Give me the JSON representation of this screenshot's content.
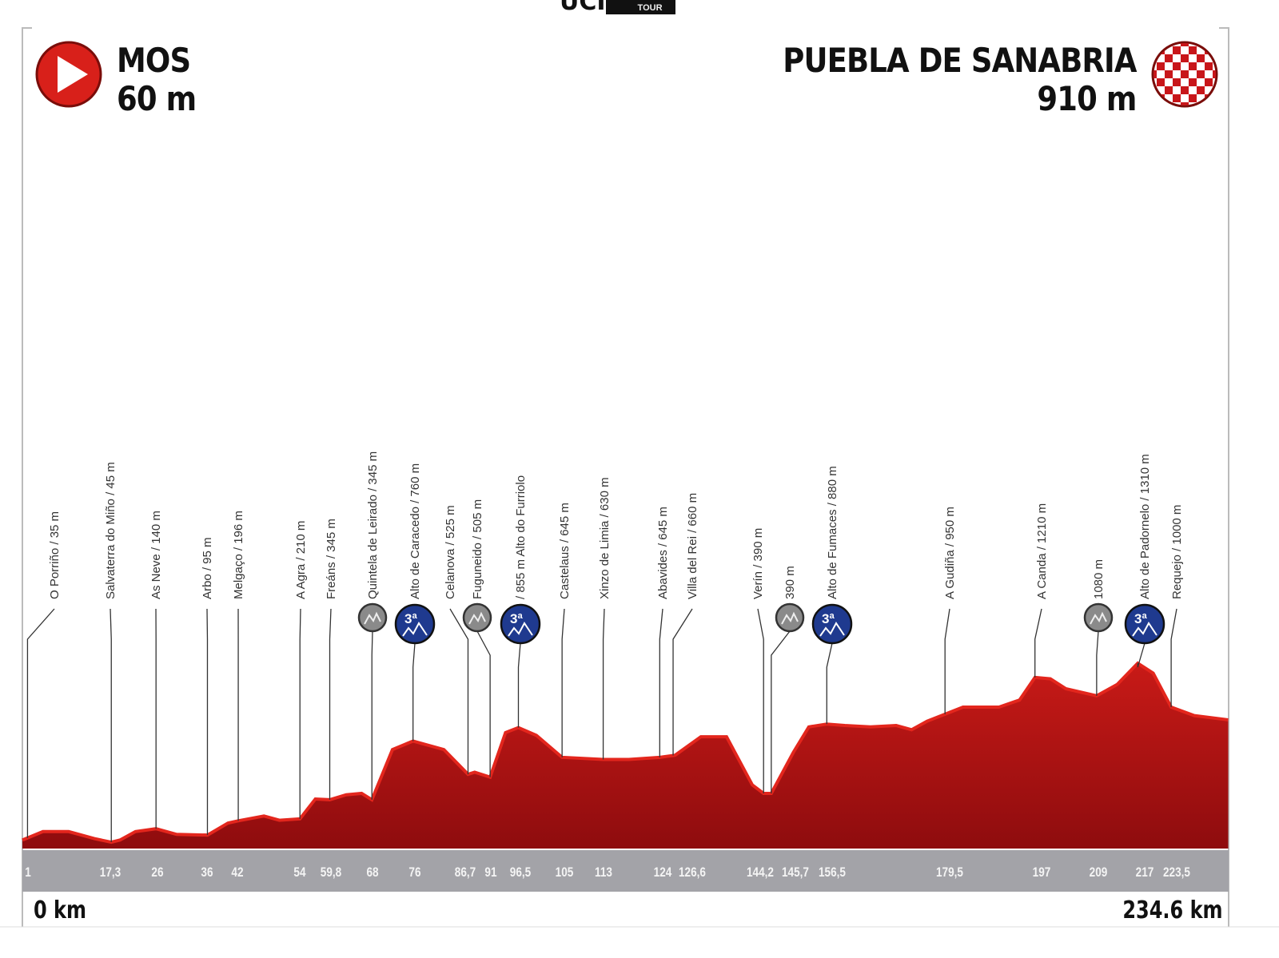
{
  "logo": {
    "text": "UCI",
    "tour": "TOUR"
  },
  "start": {
    "name": "MOS",
    "elevation": "60 m",
    "icon": "play-icon"
  },
  "finish": {
    "name": "PUEBLA DE SANABRIA",
    "elevation": "910 m",
    "icon": "checkered-flag-icon"
  },
  "distance": {
    "start": "0 km",
    "end": "234.6 km"
  },
  "colors": {
    "profile_dark": "#9e0f10",
    "profile_light": "#e3261d",
    "band": "#a3a3a8",
    "badge_blue": "#1f3a8f",
    "badge_grey": "#8a8a8a"
  },
  "chart_data": {
    "type": "area",
    "x_unit": "km",
    "y_unit": "m",
    "xlim": [
      0,
      234.6
    ],
    "profile": [
      [
        0,
        60
      ],
      [
        4,
        120
      ],
      [
        9,
        120
      ],
      [
        14,
        70
      ],
      [
        17.3,
        45
      ],
      [
        19,
        60
      ],
      [
        22,
        120
      ],
      [
        26,
        140
      ],
      [
        30,
        100
      ],
      [
        36,
        95
      ],
      [
        40,
        180
      ],
      [
        42,
        196
      ],
      [
        47,
        230
      ],
      [
        50,
        200
      ],
      [
        54,
        210
      ],
      [
        57,
        350
      ],
      [
        59.8,
        345
      ],
      [
        63,
        380
      ],
      [
        66,
        390
      ],
      [
        68,
        345
      ],
      [
        72,
        700
      ],
      [
        76,
        760
      ],
      [
        78,
        740
      ],
      [
        82,
        700
      ],
      [
        86.7,
        525
      ],
      [
        88,
        540
      ],
      [
        91,
        505
      ],
      [
        94,
        820
      ],
      [
        96.5,
        855
      ],
      [
        100,
        800
      ],
      [
        105,
        645
      ],
      [
        113,
        630
      ],
      [
        118,
        630
      ],
      [
        124,
        645
      ],
      [
        127,
        660
      ],
      [
        132,
        790
      ],
      [
        137,
        790
      ],
      [
        142,
        450
      ],
      [
        144.2,
        390
      ],
      [
        145.7,
        390
      ],
      [
        150,
        680
      ],
      [
        153,
        860
      ],
      [
        156.5,
        880
      ],
      [
        160,
        870
      ],
      [
        165,
        860
      ],
      [
        170,
        870
      ],
      [
        173,
        840
      ],
      [
        176,
        900
      ],
      [
        179.5,
        950
      ],
      [
        183,
        1000
      ],
      [
        190,
        1000
      ],
      [
        194,
        1050
      ],
      [
        197,
        1210
      ],
      [
        200,
        1200
      ],
      [
        203,
        1130
      ],
      [
        209,
        1080
      ],
      [
        213,
        1160
      ],
      [
        217,
        1310
      ],
      [
        220,
        1240
      ],
      [
        223.5,
        1000
      ],
      [
        228,
        940
      ],
      [
        234.6,
        910
      ]
    ],
    "waypoints": [
      {
        "km": 1,
        "tick": "1",
        "label": "O Porriño / 35 m"
      },
      {
        "km": 17.3,
        "tick": "17,3",
        "label": "Salvaterra do Miño / 45 m"
      },
      {
        "km": 26,
        "tick": "26",
        "label": "As Neve / 140 m"
      },
      {
        "km": 36,
        "tick": "36",
        "label": "Arbo / 95 m"
      },
      {
        "km": 42,
        "tick": "42",
        "label": "Melgaço / 196 m"
      },
      {
        "km": 54,
        "tick": "54",
        "label": "A Agra / 210 m"
      },
      {
        "km": 59.8,
        "tick": "59,8",
        "label": "Freáns / 345 m"
      },
      {
        "km": 68,
        "tick": "68",
        "label": "Quintela de Leirado / 345 m",
        "badge": "grey"
      },
      {
        "km": 76,
        "tick": "76",
        "label": "Alto de Caracedo / 760 m",
        "badge": "3ª"
      },
      {
        "km": 86.7,
        "tick": "86,7",
        "label": "Celanova / 525 m"
      },
      {
        "km": 91,
        "tick": "91",
        "label": "Fuguneido / 505 m",
        "badge": "grey"
      },
      {
        "km": 96.5,
        "tick": "96,5",
        "label": "/ 855 m Alto do Furriolo",
        "badge": "3ª"
      },
      {
        "km": 105,
        "tick": "105",
        "label": "Castelaus / 645 m"
      },
      {
        "km": 113,
        "tick": "113",
        "label": "Xinzo de Limia / 630 m"
      },
      {
        "km": 124,
        "tick": "124",
        "label": "Abavides / 645 m"
      },
      {
        "km": 126.6,
        "tick": "126,6",
        "label": "Villa del Rei / 660 m"
      },
      {
        "km": 144.2,
        "tick": "144,2",
        "label": "Verín / 390 m"
      },
      {
        "km": 145.7,
        "tick": "145,7",
        "label": "390 m",
        "badge": "grey"
      },
      {
        "km": 156.5,
        "tick": "156,5",
        "label": "Alto de Fumaces / 880 m",
        "badge": "3ª"
      },
      {
        "km": 179.5,
        "tick": "179,5",
        "label": "A Gudiña / 950 m"
      },
      {
        "km": 197,
        "tick": "197",
        "label": "A Canda / 1210 m"
      },
      {
        "km": 209,
        "tick": "209",
        "label": "1080 m",
        "badge": "grey"
      },
      {
        "km": 217,
        "tick": "217",
        "label": "Alto de Padornelo / 1310 m",
        "badge": "3ª"
      },
      {
        "km": 223.5,
        "tick": "223,5",
        "label": "Requejo / 1000 m"
      }
    ]
  }
}
